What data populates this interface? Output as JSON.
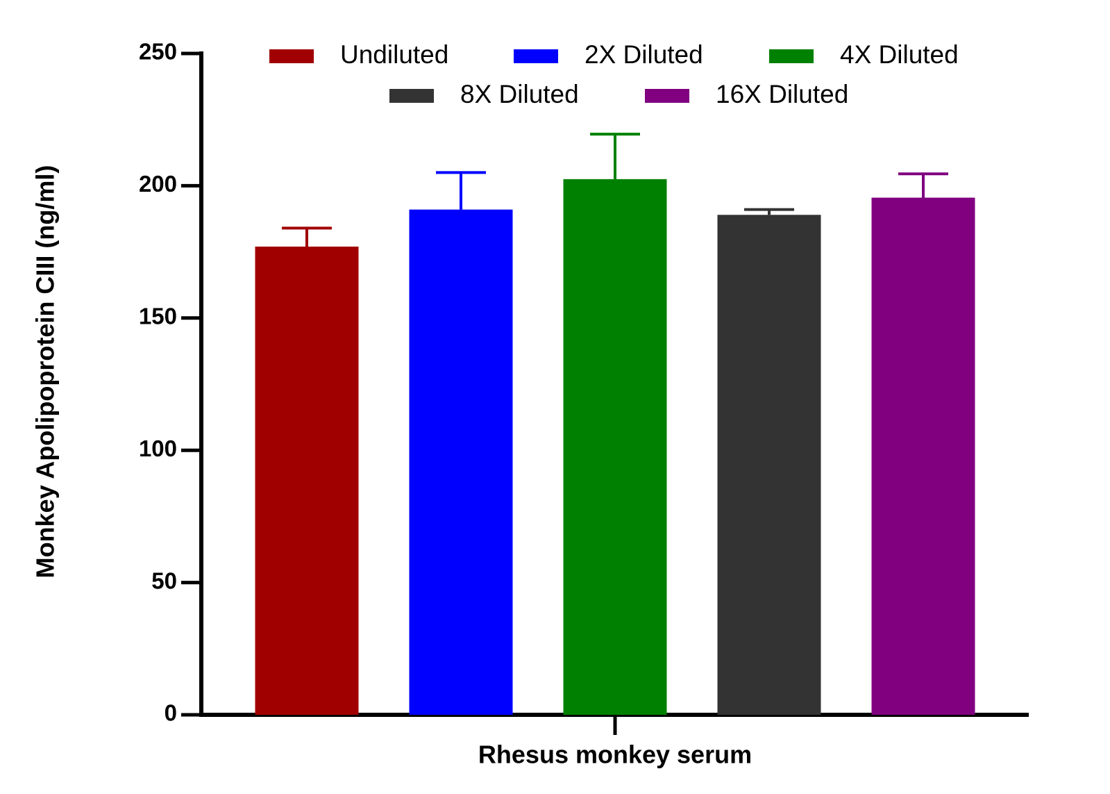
{
  "chart_data": {
    "type": "bar",
    "y_label": "Monkey Apolipoprotein CIII (ng/ml)",
    "categories": [
      "Rhesus monkey serum"
    ],
    "series": [
      {
        "name": "Undiluted",
        "color": "#a00000",
        "values": [
          177
        ],
        "errors": [
          7
        ]
      },
      {
        "name": "2X Diluted",
        "color": "#0000ff",
        "values": [
          191
        ],
        "errors": [
          14
        ]
      },
      {
        "name": "4X Diluted",
        "color": "#008000",
        "values": [
          202.5
        ],
        "errors": [
          17
        ]
      },
      {
        "name": "8X Diluted",
        "color": "#333333",
        "values": [
          189
        ],
        "errors": [
          2
        ]
      },
      {
        "name": "16X Diluted",
        "color": "#800080",
        "values": [
          195.5
        ],
        "errors": [
          9
        ]
      }
    ],
    "ylim": [
      0,
      250
    ],
    "yticks": [
      0,
      50,
      100,
      150,
      200,
      250
    ],
    "grid": false,
    "legend": "top"
  }
}
